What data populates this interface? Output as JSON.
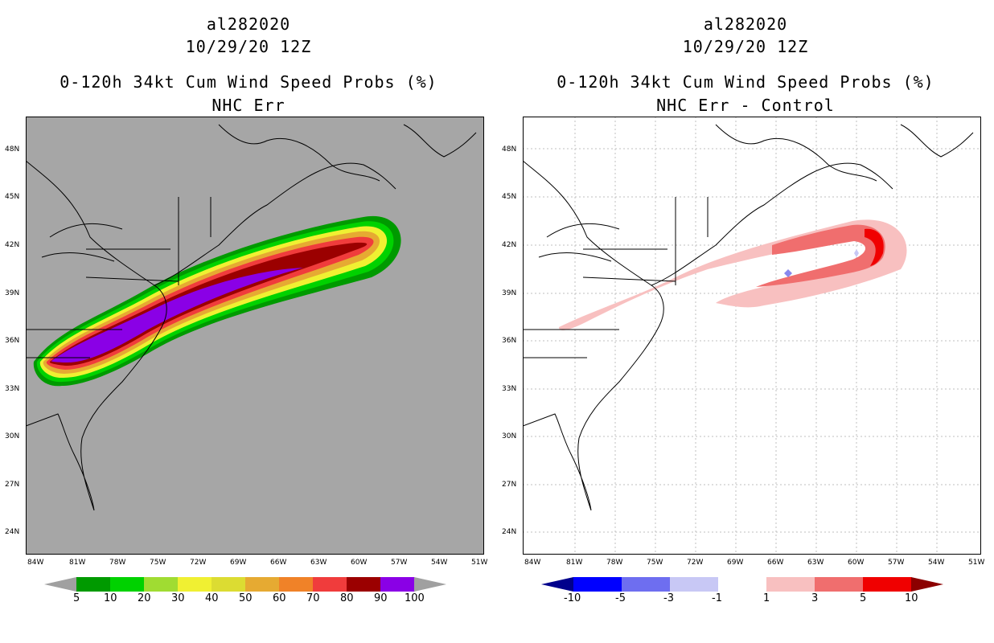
{
  "left_panel": {
    "storm_id": "al282020",
    "datetime": "10/29/20 12Z",
    "product": "0-120h 34kt Cum Wind Speed Probs (%)",
    "subtitle": "NHC Err",
    "colorbar": {
      "labels": [
        "5",
        "10",
        "20",
        "30",
        "40",
        "50",
        "60",
        "70",
        "80",
        "90",
        "100"
      ],
      "colors": [
        "#a0a0a0",
        "#009a00",
        "#00d200",
        "#a0dc32",
        "#f0f032",
        "#dcdc32",
        "#e6aa32",
        "#f08228",
        "#f03c3c",
        "#9b0000",
        "#8a00e6",
        "#a0a0a0"
      ]
    }
  },
  "right_panel": {
    "storm_id": "al282020",
    "datetime": "10/29/20 12Z",
    "product": "0-120h 34kt Cum Wind Speed Probs (%)",
    "subtitle": "NHC Err - Control",
    "colorbar": {
      "labels": [
        "-10",
        "-5",
        "-3",
        "-1",
        "1",
        "3",
        "5",
        "10"
      ],
      "colors": [
        "#00008c",
        "#0000ff",
        "#6e6ef0",
        "#c8c8f5",
        "#ffffff",
        "#f8c0c0",
        "#f06e6e",
        "#f00000",
        "#8c0000"
      ]
    }
  },
  "axes": {
    "lat_labels": [
      "48N",
      "45N",
      "42N",
      "39N",
      "36N",
      "33N",
      "30N",
      "27N",
      "24N"
    ],
    "lon_labels": [
      "84W",
      "81W",
      "78W",
      "75W",
      "72W",
      "69W",
      "66W",
      "63W",
      "60W",
      "57W",
      "54W",
      "51W"
    ]
  }
}
